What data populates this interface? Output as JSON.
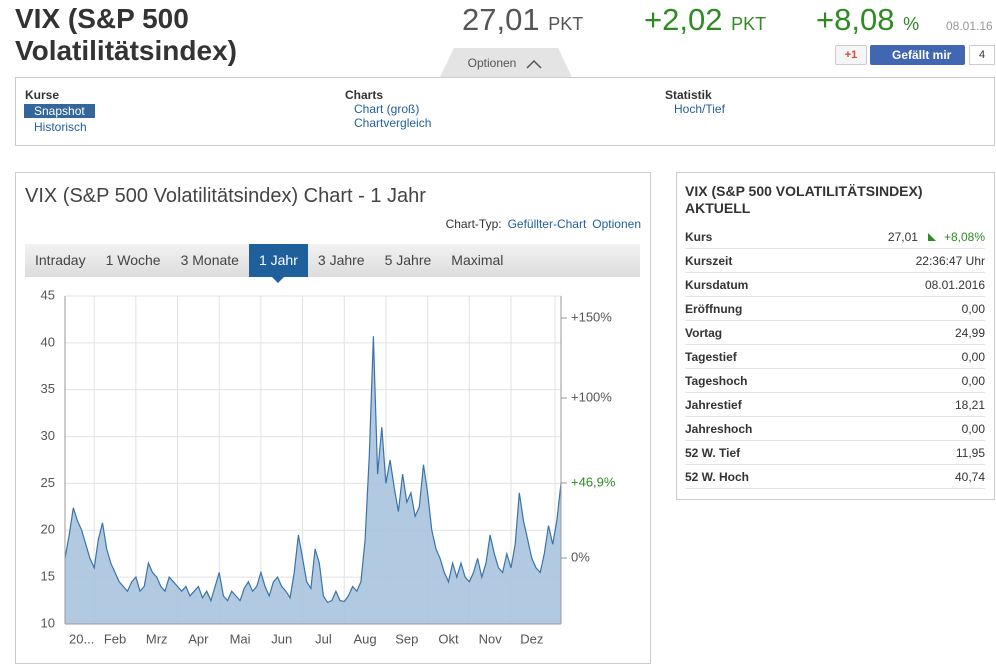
{
  "header": {
    "title": "VIX (S&P 500 Volatilitätsindex)",
    "price": "27,01",
    "price_unit": "PKT",
    "change": "+2,02",
    "change_unit": "PKT",
    "change_pct": "+8,08",
    "pct_unit": "%",
    "date": "08.01.16",
    "gplus": "+1",
    "like": "Gefällt mir",
    "like_count": "4",
    "options": "Optionen"
  },
  "nav": [
    {
      "heading": "Kurse",
      "links": [
        "Snapshot",
        "Historisch"
      ]
    },
    {
      "heading": "Charts",
      "links": [
        "Chart (groß)",
        "Chartvergleich"
      ]
    },
    {
      "heading": "Statistik",
      "links": [
        "Hoch/Tief"
      ]
    }
  ],
  "chart_panel": {
    "title": "VIX (S&P 500 Volatilitätsindex) Chart - 1 Jahr",
    "type_label": "Chart-Typ:",
    "type_value": "Gefüllter-Chart",
    "options": "Optionen",
    "tabs": [
      "Intraday",
      "1 Woche",
      "3 Monate",
      "1 Jahr",
      "3 Jahre",
      "5 Jahre",
      "Maximal"
    ],
    "active_tab": 3
  },
  "chart_data": {
    "type": "area",
    "color": "#3b73a9",
    "categories": [
      null,
      null,
      null,
      null,
      "20...",
      null,
      null,
      null,
      null,
      null,
      null,
      null,
      "Feb",
      null,
      null,
      null,
      null,
      null,
      null,
      null,
      null,
      null,
      "Mrz",
      null,
      null,
      null,
      null,
      null,
      null,
      null,
      null,
      null,
      "Apr",
      null,
      null,
      null,
      null,
      null,
      null,
      null,
      null,
      null,
      "Mai",
      null,
      null,
      null,
      null,
      null,
      null,
      null,
      null,
      null,
      "Jun",
      null,
      null,
      null,
      null,
      null,
      null,
      null,
      null,
      null,
      "Jul",
      null,
      null,
      null,
      null,
      null,
      null,
      null,
      null,
      null,
      "Aug",
      null,
      null,
      null,
      null,
      null,
      null,
      null,
      null,
      null,
      "Sep",
      null,
      null,
      null,
      null,
      null,
      null,
      null,
      null,
      null,
      "Okt",
      null,
      null,
      null,
      null,
      null,
      null,
      null,
      null,
      null,
      "Nov",
      null,
      null,
      null,
      null,
      null,
      null,
      null,
      null,
      null,
      "Dez",
      null,
      null,
      null,
      null,
      null,
      null,
      null
    ],
    "values": [
      17.0,
      19.5,
      22.4,
      21.0,
      20.0,
      18.5,
      17.0,
      16.0,
      19.0,
      20.8,
      18.0,
      16.5,
      15.5,
      14.5,
      14.0,
      13.5,
      14.5,
      15.0,
      13.5,
      14.0,
      16.5,
      15.5,
      15.0,
      14.0,
      13.5,
      15.0,
      14.5,
      14.0,
      13.5,
      14.0,
      13.0,
      13.5,
      14.0,
      12.8,
      13.5,
      12.5,
      14.0,
      15.5,
      13.0,
      12.5,
      13.5,
      13.0,
      12.5,
      13.8,
      14.5,
      13.5,
      14.0,
      15.5,
      14.0,
      13.0,
      14.5,
      15.0,
      14.0,
      13.5,
      12.8,
      15.5,
      19.5,
      17.0,
      14.5,
      13.8,
      18.0,
      16.5,
      13.0,
      12.3,
      12.5,
      13.5,
      12.5,
      12.4,
      13.0,
      14.0,
      13.5,
      14.5,
      19.0,
      28.0,
      40.7,
      26.0,
      31.0,
      25.0,
      27.5,
      24.5,
      22.0,
      26.0,
      23.0,
      24.0,
      21.5,
      22.5,
      27.0,
      24.0,
      20.0,
      18.0,
      17.0,
      15.5,
      14.5,
      16.5,
      15.0,
      16.5,
      15.0,
      14.5,
      15.5,
      17.0,
      15.0,
      16.5,
      19.5,
      17.5,
      16.0,
      15.5,
      17.5,
      16.0,
      18.5,
      24.0,
      21.0,
      19.0,
      17.0,
      16.0,
      15.5,
      17.5,
      20.5,
      18.5,
      21.0,
      25.0
    ],
    "ylim": [
      10,
      45
    ],
    "yticks": [
      10,
      15,
      20,
      25,
      30,
      35,
      40,
      45
    ],
    "y2lim": [
      -41.25,
      163.75
    ],
    "y2ticks": [
      {
        "value": 0,
        "label": "0%"
      },
      {
        "value": 46.9,
        "label": "+46,9%"
      },
      {
        "value": 100,
        "label": "+100%"
      },
      {
        "value": 150,
        "label": "+150%"
      }
    ],
    "grid": true
  },
  "quote_table": {
    "title": "VIX (S&P 500 VOLATILITÄTSINDEX) AKTUELL",
    "rows": [
      [
        "Kurs",
        "27,01",
        "+8,08%"
      ],
      [
        "Kurszeit",
        "22:36:47 Uhr"
      ],
      [
        "Kursdatum",
        "08.01.2016"
      ],
      [
        "Eröffnung",
        "0,00"
      ],
      [
        "Vortag",
        "24,99"
      ],
      [
        "Tagestief",
        "0,00"
      ],
      [
        "Tageshoch",
        "0,00"
      ],
      [
        "Jahrestief",
        "18,21"
      ],
      [
        "Jahreshoch",
        "0,00"
      ],
      [
        "52 W. Tief",
        "11,95"
      ],
      [
        "52 W. Hoch",
        "40,74"
      ]
    ]
  }
}
